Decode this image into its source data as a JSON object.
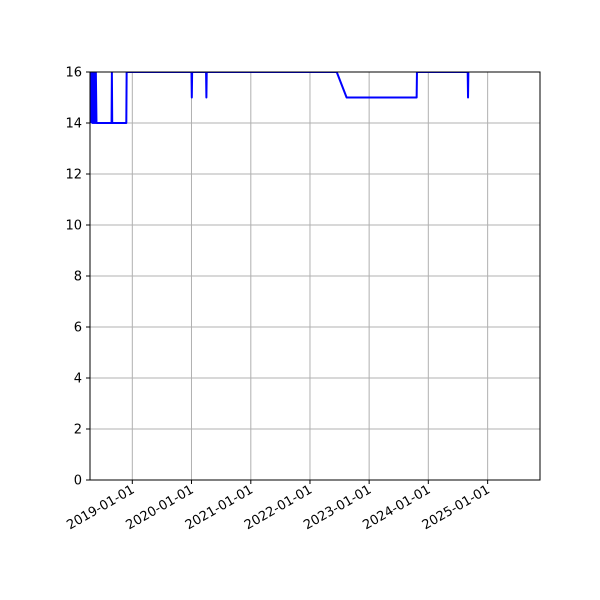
{
  "chart_data": {
    "type": "line",
    "title": "",
    "xlabel": "",
    "ylabel": "",
    "x_axis_type": "date",
    "xlim": [
      "2018-04-15",
      "2025-11-20"
    ],
    "ylim": [
      0,
      16
    ],
    "grid": true,
    "legend": "none",
    "x_ticks": [
      "2019-01-01",
      "2020-01-01",
      "2021-01-01",
      "2022-01-01",
      "2023-01-01",
      "2024-01-01",
      "2025-01-01"
    ],
    "y_ticks": [
      0,
      2,
      4,
      6,
      8,
      10,
      12,
      14,
      16
    ],
    "series": [
      {
        "color": "#0000ff",
        "points": [
          [
            "2018-04-18",
            14
          ],
          [
            "2018-04-20",
            16
          ],
          [
            "2018-04-28",
            16
          ],
          [
            "2018-04-30",
            14
          ],
          [
            "2018-05-03",
            16
          ],
          [
            "2018-05-06",
            14
          ],
          [
            "2018-05-09",
            16
          ],
          [
            "2018-05-12",
            14
          ],
          [
            "2018-05-15",
            16
          ],
          [
            "2018-05-18",
            14
          ],
          [
            "2018-05-21",
            16
          ],
          [
            "2018-05-25",
            14
          ],
          [
            "2018-08-26",
            14
          ],
          [
            "2018-08-28",
            16
          ],
          [
            "2018-08-30",
            14
          ],
          [
            "2018-11-25",
            14
          ],
          [
            "2018-11-27",
            16
          ],
          [
            "2020-01-01",
            16
          ],
          [
            "2020-01-03",
            15
          ],
          [
            "2020-01-05",
            16
          ],
          [
            "2020-03-31",
            16
          ],
          [
            "2020-04-02",
            15
          ],
          [
            "2020-04-04",
            16
          ],
          [
            "2022-06-15",
            16
          ],
          [
            "2022-08-15",
            15
          ],
          [
            "2023-10-21",
            15
          ],
          [
            "2023-10-23",
            16
          ],
          [
            "2024-08-31",
            16
          ],
          [
            "2024-09-02",
            15
          ],
          [
            "2024-09-04",
            16
          ]
        ]
      }
    ]
  }
}
